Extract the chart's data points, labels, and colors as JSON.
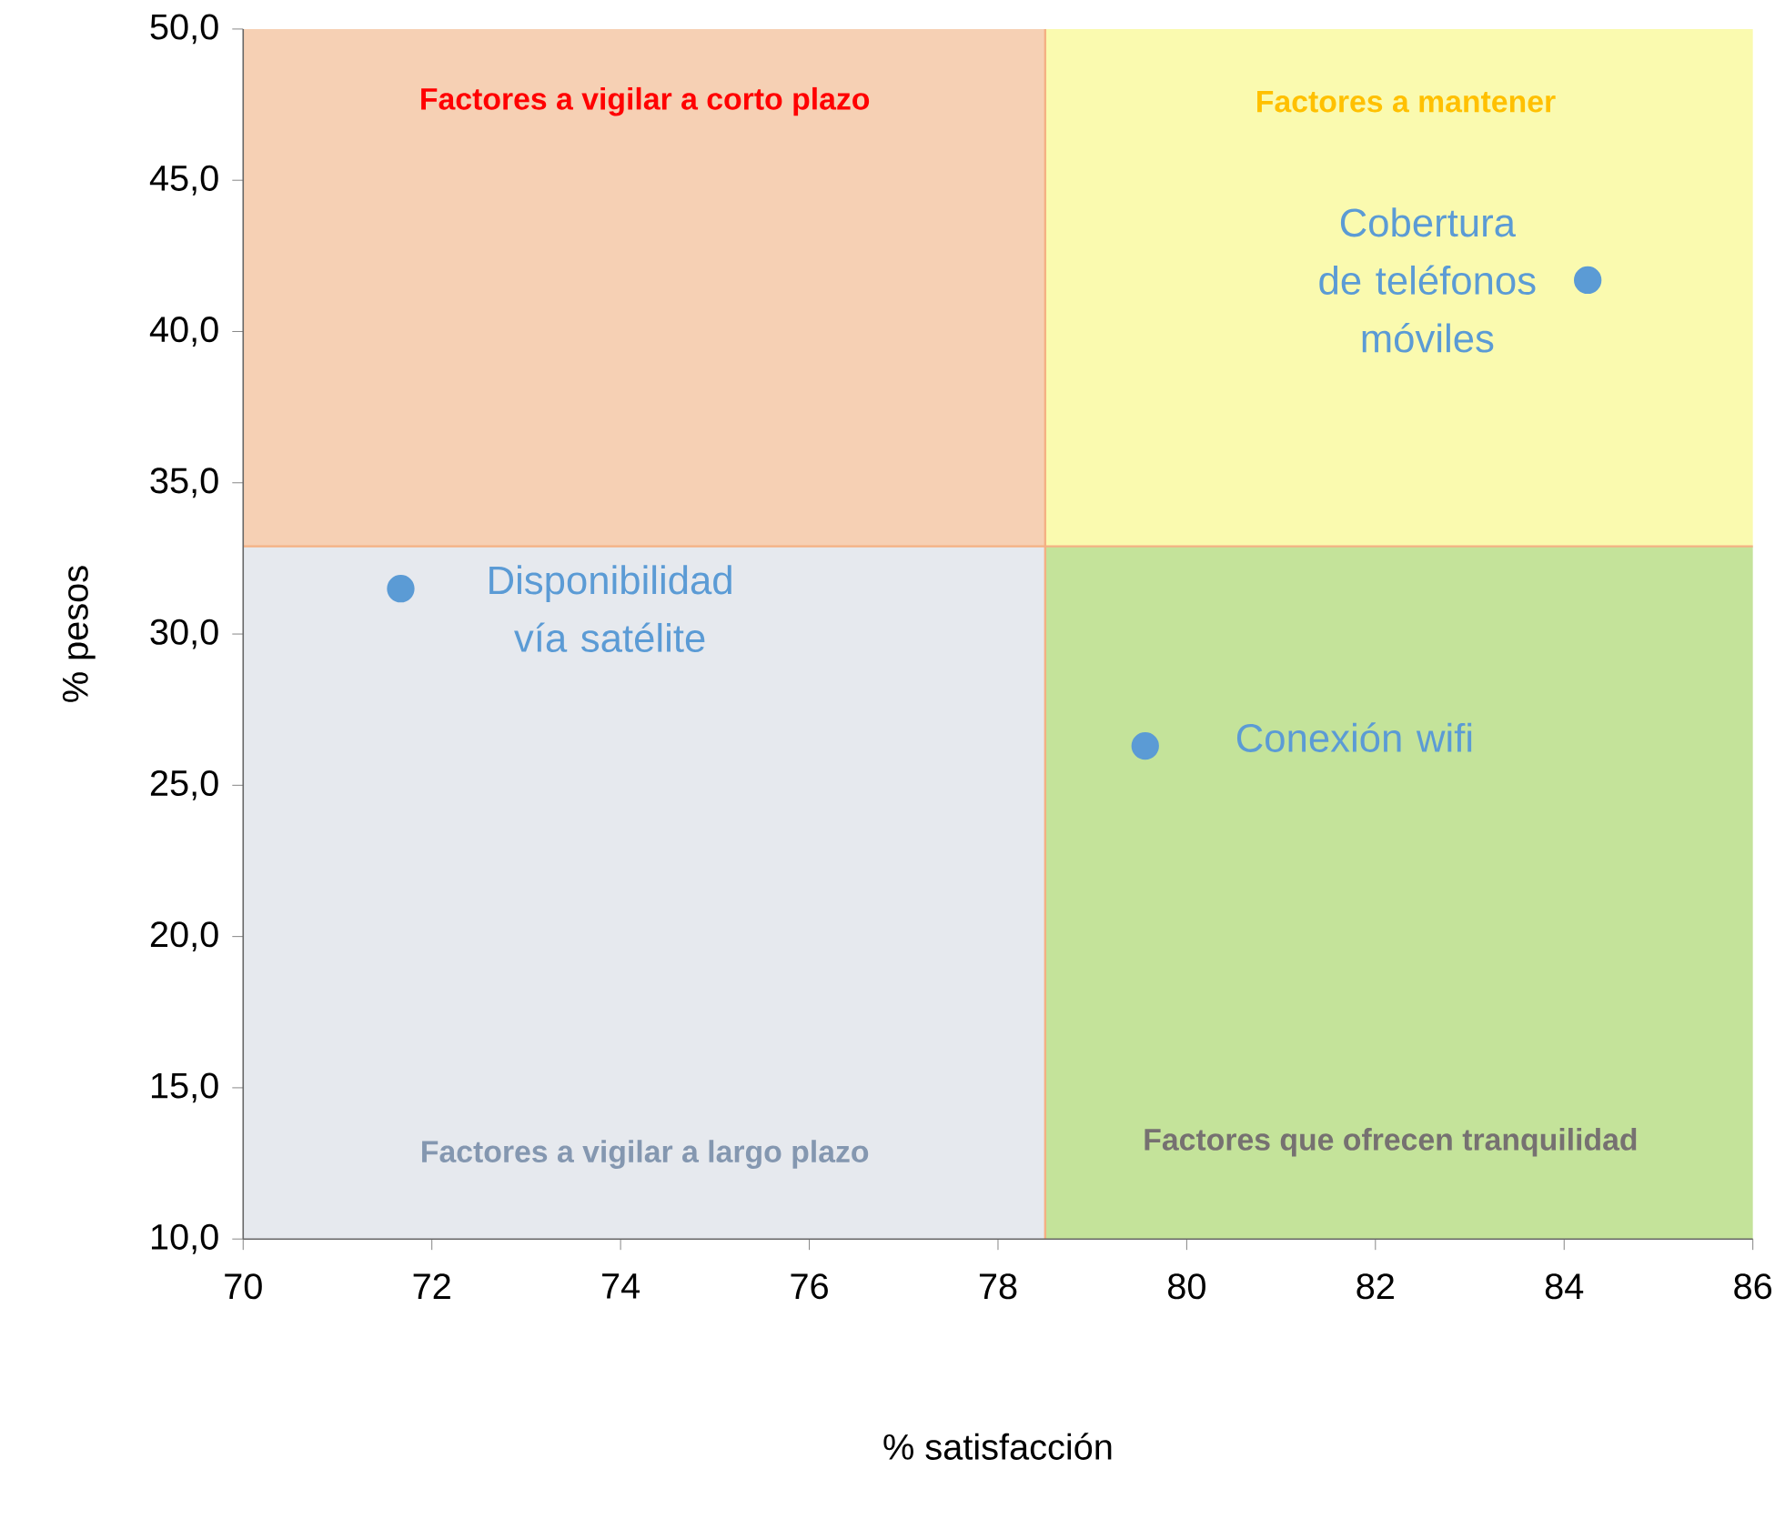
{
  "chart_data": {
    "type": "scatter",
    "xlabel": "% satisfacción",
    "ylabel": "% pesos",
    "xlim": [
      70,
      86
    ],
    "xticks": [
      70,
      72,
      74,
      76,
      78,
      80,
      82,
      84,
      86
    ],
    "ylim": [
      10,
      50
    ],
    "yticks": [
      {
        "value": 10,
        "label": "10,0"
      },
      {
        "value": 15,
        "label": "15,0"
      },
      {
        "value": 20,
        "label": "20,0"
      },
      {
        "value": 25,
        "label": "25,0"
      },
      {
        "value": 30,
        "label": "30,0"
      },
      {
        "value": 35,
        "label": "35,0"
      },
      {
        "value": 40,
        "label": "40,0"
      },
      {
        "value": 45,
        "label": "45,0"
      },
      {
        "value": 50,
        "label": "50,0"
      }
    ],
    "grid": false,
    "legend": false,
    "ref_lines": [
      {
        "axis": "x",
        "value": 78.5,
        "color": "#f4b183"
      },
      {
        "axis": "y",
        "value": 32.9,
        "color": "#f4b183"
      }
    ],
    "annotations": [
      "Factores a vigilar a corto plazo",
      "Factores a mantener",
      "Factores a vigilar a largo plazo",
      "Factores que ofrecen tranquilidad"
    ],
    "series": [
      {
        "name": "Disponibilidad vía satélite",
        "color": "#5b9bd5",
        "x": [
          71.67
        ],
        "values": [
          31.5
        ]
      },
      {
        "name": "Conexión wifi",
        "color": "#5b9bd5",
        "x": [
          79.56
        ],
        "values": [
          26.3
        ]
      },
      {
        "name": "Cobertura de teléfonos móviles",
        "color": "#5b9bd5",
        "x": [
          84.25
        ],
        "values": [
          41.7
        ]
      }
    ]
  }
}
